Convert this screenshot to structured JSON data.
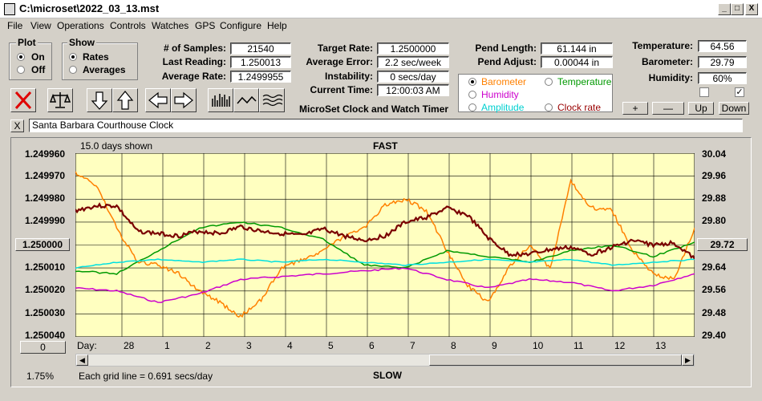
{
  "window": {
    "title": "C:\\microset\\2022_03_13.mst",
    "btn_min": "_",
    "btn_max": "□",
    "btn_close": "X"
  },
  "menu": [
    "File",
    "View",
    "Operations",
    "Controls",
    "Watches",
    "GPS",
    "Configure",
    "Help"
  ],
  "plot_group": {
    "title": "Plot",
    "on": "On",
    "off": "Off",
    "selected": "On"
  },
  "show_group": {
    "title": "Show",
    "rates": "Rates",
    "averages": "Averages",
    "selected": "Rates"
  },
  "stats": {
    "samples_label": "# of Samples:",
    "samples": "21540",
    "last_label": "Last Reading:",
    "last": "1.250013",
    "avg_rate_label": "Average Rate:",
    "avg_rate": "1.2499955",
    "target_label": "Target Rate:",
    "target": "1.2500000",
    "avg_err_label": "Average Error:",
    "avg_err": "2.2 sec/week",
    "instab_label": "Instability:",
    "instab": "0 secs/day",
    "time_label": "Current Time:",
    "time": "12:00:03 AM",
    "pend_len_label": "Pend Length:",
    "pend_len": "61.144 in",
    "pend_adj_label": "Pend Adjust:",
    "pend_adj": "0.00044 in",
    "temp_label": "Temperature:",
    "temp": "64.56",
    "baro_label": "Barometer:",
    "baro": "29.79",
    "hum_label": "Humidity:",
    "hum": "60%"
  },
  "app_caption": "MicroSet Clock and Watch Timer",
  "sensor_select": {
    "barometer": "Barometer",
    "temperature": "Temperature",
    "humidity": "Humidity",
    "amplitude": "Amplitude",
    "clock_rate": "Clock rate",
    "selected": "Barometer",
    "colors": {
      "barometer": "#ff8000",
      "temperature": "#009900",
      "humidity": "#cc00cc",
      "amplitude": "#00e0e0",
      "clock_rate": "#990000"
    }
  },
  "adjust_buttons": {
    "plus": "+",
    "minus": "—",
    "up": "Up",
    "down": "Down"
  },
  "checkboxes": {
    "left": false,
    "right": true,
    "check_mark": "✓"
  },
  "clock_name_close": "X",
  "clock_name": "Santa Barbara Courthouse Clock",
  "plot": {
    "days_shown": "15.0 days shown",
    "top_label": "FAST",
    "bottom_label": "SLOW",
    "grid_note": "Each grid line = 0.691 secs/day",
    "left_value_btn": "1.250000",
    "right_value_btn": "29.72",
    "zero_btn": "0",
    "percent": "1.75%",
    "day_label": "Day:",
    "left_ticks": [
      "1.249960",
      "1.249970",
      "1.249980",
      "1.249990",
      "1.250000",
      "1.250010",
      "1.250020",
      "1.250030",
      "1.250040"
    ],
    "right_ticks": [
      "30.04",
      "29.96",
      "29.88",
      "29.80",
      "29.72",
      "29.64",
      "29.56",
      "29.48",
      "29.40"
    ],
    "day_ticks": [
      "28",
      "1",
      "2",
      "3",
      "4",
      "5",
      "6",
      "7",
      "8",
      "9",
      "10",
      "11",
      "12",
      "13"
    ]
  },
  "chart_data": {
    "type": "line",
    "ylim": [
      1.25004,
      1.24996
    ],
    "y2lim": [
      29.4,
      30.04
    ],
    "x_unit": "day",
    "series": [
      {
        "name": "Clock rate",
        "color": "#7a0000",
        "axis": "left",
        "x": [
          0,
          0.5,
          1,
          1.5,
          2,
          2.5,
          3,
          3.5,
          4,
          4.5,
          5,
          5.5,
          6,
          6.5,
          7,
          7.5,
          8,
          8.5,
          9,
          9.5,
          10,
          10.5,
          11,
          11.5,
          12,
          12.5,
          13,
          13.5,
          14,
          14.5,
          15
        ],
        "y": [
          1.249985,
          1.249983,
          1.249983,
          1.249994,
          1.249995,
          1.249996,
          1.249994,
          1.249995,
          1.249992,
          1.249994,
          1.249995,
          1.249996,
          1.249993,
          1.249996,
          1.249998,
          1.249996,
          1.24999,
          1.249988,
          1.249984,
          1.249987,
          1.249997,
          1.250004,
          1.250004,
          1.250002,
          1.250001,
          1.250004,
          1.250001,
          1.249998,
          1.25,
          1.249999,
          1.250006
        ]
      },
      {
        "name": "Barometer",
        "color": "#ff8000",
        "axis": "right",
        "x": [
          0,
          0.5,
          1,
          1.5,
          2,
          2.5,
          3,
          3.5,
          4,
          4.5,
          5,
          5.5,
          6,
          6.5,
          7,
          7.5,
          8,
          8.5,
          9,
          9.5,
          10,
          10.5,
          11,
          11.5,
          12,
          12.5,
          13,
          13.5,
          14,
          14.5,
          15
        ],
        "y": [
          29.97,
          29.93,
          29.78,
          29.66,
          29.65,
          29.62,
          29.56,
          29.52,
          29.47,
          29.53,
          29.64,
          29.67,
          29.7,
          29.75,
          29.78,
          29.86,
          29.88,
          29.84,
          29.7,
          29.58,
          29.52,
          29.64,
          29.72,
          29.64,
          29.94,
          29.85,
          29.84,
          29.7,
          29.62,
          29.6,
          29.78
        ]
      },
      {
        "name": "Temperature",
        "color": "#009900",
        "axis": "right",
        "x": [
          0,
          1,
          2,
          3,
          4,
          5,
          6,
          7,
          8,
          9,
          10,
          11,
          12,
          13,
          14,
          15
        ],
        "y": [
          29.63,
          29.62,
          29.7,
          29.78,
          29.8,
          29.78,
          29.74,
          29.65,
          29.64,
          29.7,
          29.68,
          29.66,
          29.7,
          29.72,
          29.68,
          29.73
        ]
      },
      {
        "name": "Amplitude",
        "color": "#00e0e0",
        "axis": "right",
        "x": [
          0,
          1,
          2,
          3,
          4,
          5,
          6,
          7,
          8,
          9,
          10,
          11,
          12,
          13,
          14,
          15
        ],
        "y": [
          29.64,
          29.66,
          29.67,
          29.66,
          29.67,
          29.66,
          29.67,
          29.66,
          29.65,
          29.66,
          29.67,
          29.66,
          29.67,
          29.65,
          29.66,
          29.67
        ]
      },
      {
        "name": "Humidity",
        "color": "#cc00cc",
        "axis": "right",
        "x": [
          0,
          1,
          2,
          3,
          4,
          5,
          6,
          7,
          8,
          9,
          10,
          11,
          12,
          13,
          14,
          15
        ],
        "y": [
          29.57,
          29.56,
          29.52,
          29.55,
          29.6,
          29.61,
          29.62,
          29.63,
          29.64,
          29.6,
          29.57,
          29.6,
          29.59,
          29.56,
          29.58,
          29.62
        ]
      }
    ]
  }
}
